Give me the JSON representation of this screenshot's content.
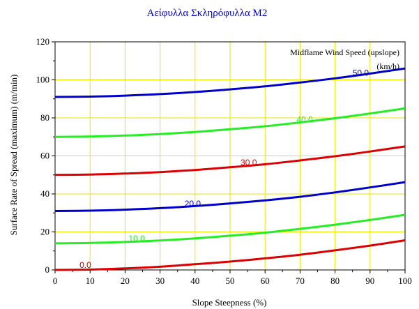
{
  "chart_data": {
    "type": "line",
    "title": "Αείφυλλα Σκληρόφυλλα M2",
    "xlabel": "Slope Steepness (%)",
    "ylabel": "Surface Rate of Spread (maximum) (m/min)",
    "xlim": [
      0,
      100
    ],
    "ylim": [
      0,
      120
    ],
    "xticks": [
      "0",
      "10",
      "20",
      "30",
      "40",
      "50",
      "60",
      "70",
      "80",
      "90",
      "100"
    ],
    "yticks": [
      "0",
      "20",
      "40",
      "60",
      "80",
      "100",
      "120"
    ],
    "grid": true,
    "legend_title_line1": "Midflame Wind Speed (upslope)",
    "legend_title_line2": "(km/h)",
    "legend_placement": "top-right",
    "x": [
      0,
      10,
      20,
      30,
      40,
      50,
      60,
      70,
      80,
      90,
      100
    ],
    "series": [
      {
        "name": "0.0",
        "color": "#dd0000",
        "values": [
          0.0,
          0.2,
          0.8,
          1.7,
          3.0,
          4.4,
          6.1,
          8.0,
          10.3,
          12.8,
          15.6
        ],
        "label_at_x": 7,
        "label_at_y": 0.8
      },
      {
        "name": "10.0",
        "color": "#22ee22",
        "values": [
          14.0,
          14.2,
          14.7,
          15.5,
          16.6,
          18.0,
          19.6,
          21.6,
          23.8,
          26.3,
          29.0
        ],
        "label_at_x": 21,
        "label_at_y": 14.6
      },
      {
        "name": "20.0",
        "color": "#0000cc",
        "values": [
          31.0,
          31.2,
          31.7,
          32.5,
          33.6,
          35.0,
          36.6,
          38.5,
          40.8,
          43.4,
          46.2
        ],
        "label_at_x": 37,
        "label_at_y": 33.1
      },
      {
        "name": "30.0",
        "color": "#dd0000",
        "values": [
          50.0,
          50.2,
          50.7,
          51.5,
          52.6,
          54.0,
          55.6,
          57.6,
          59.8,
          62.3,
          65.0
        ],
        "label_at_x": 53,
        "label_at_y": 54.6
      },
      {
        "name": "40.0",
        "color": "#22ee22",
        "values": [
          70.0,
          70.2,
          70.7,
          71.5,
          72.6,
          74.0,
          75.6,
          77.6,
          79.8,
          82.3,
          85.0
        ],
        "label_at_x": 69,
        "label_at_y": 77.3
      },
      {
        "name": "50.0",
        "color": "#0000cc",
        "values": [
          91.0,
          91.2,
          91.7,
          92.5,
          93.6,
          95.0,
          96.6,
          98.6,
          100.8,
          103.3,
          106.0
        ],
        "label_at_x": 85,
        "label_at_y": 101.8
      }
    ]
  }
}
